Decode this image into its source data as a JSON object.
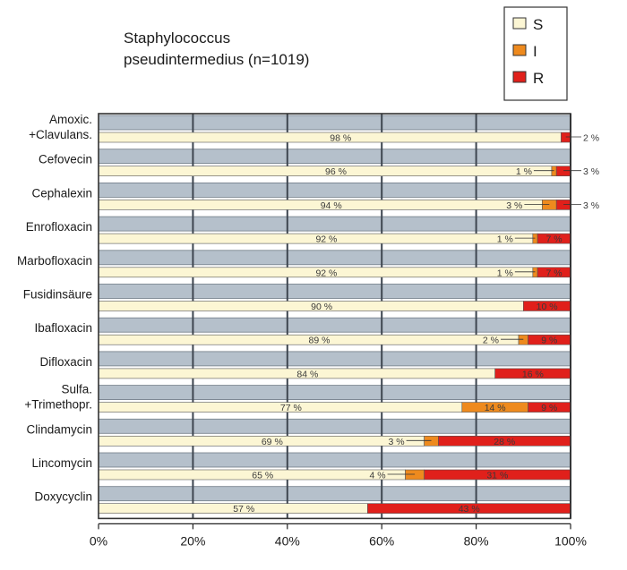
{
  "chart_data": {
    "type": "bar",
    "orientation": "horizontal",
    "stacked": true,
    "title_lines": [
      "Staphylococcus",
      "pseudintermedius (n=1019)"
    ],
    "categories": [
      [
        "Amoxic.",
        "+Clavulans."
      ],
      [
        "Cefovecin"
      ],
      [
        "Cephalexin"
      ],
      [
        "Enrofloxacin"
      ],
      [
        "Marbofloxacin"
      ],
      [
        "Fusidinsäure"
      ],
      [
        "Ibafloxacin"
      ],
      [
        "Difloxacin"
      ],
      [
        "Sulfa.",
        "+Trimethopr."
      ],
      [
        "Clindamycin"
      ],
      [
        "Lincomycin"
      ],
      [
        "Doxycyclin"
      ]
    ],
    "series": [
      {
        "name": "S",
        "color": "#fcf6d4",
        "values": [
          98,
          96,
          94,
          92,
          92,
          90,
          89,
          84,
          77,
          69,
          65,
          57
        ],
        "labels": [
          "98 %",
          "96 %",
          "94 %",
          "92 %",
          "92 %",
          "90 %",
          "89 %",
          "84 %",
          "77 %",
          "69 %",
          "65 %",
          "57 %"
        ]
      },
      {
        "name": "I",
        "color": "#ee8a1e",
        "values": [
          0,
          1,
          3,
          1,
          1,
          0,
          2,
          0,
          14,
          3,
          4,
          0
        ],
        "labels": [
          "",
          "1 %",
          "3 %",
          "1 %",
          "1 %",
          "",
          "2 %",
          "",
          "14 %",
          "3 %",
          "4 %",
          ""
        ]
      },
      {
        "name": "R",
        "color": "#e0201b",
        "values": [
          2,
          3,
          3,
          7,
          7,
          10,
          9,
          16,
          9,
          28,
          31,
          43
        ],
        "labels": [
          "2 %",
          "3 %",
          "3 %",
          "7 %",
          "7 %",
          "10 %",
          "9 %",
          "16 %",
          "9 %",
          "28 %",
          "31 %",
          "43 %"
        ]
      }
    ],
    "x_ticks": [
      "0%",
      "20%",
      "40%",
      "60%",
      "80%",
      "100%"
    ],
    "xlim": [
      0,
      100
    ],
    "legend_position": "top-right",
    "colors": {
      "band": "#b5c0cb",
      "frame": "#333333",
      "bar_outline": "#555555"
    }
  }
}
